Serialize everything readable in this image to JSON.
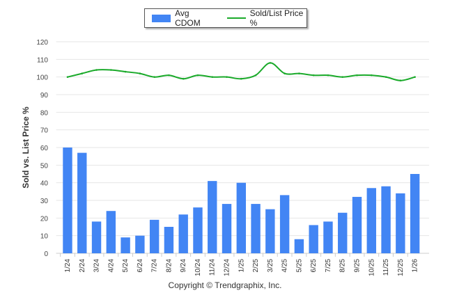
{
  "chart_data": {
    "type": "bar",
    "categories": [
      "1/24",
      "2/24",
      "3/24",
      "4/24",
      "5/24",
      "6/24",
      "7/24",
      "8/24",
      "9/24",
      "10/24",
      "11/24",
      "12/24",
      "1/25",
      "2/25",
      "3/25",
      "4/25",
      "5/25",
      "6/25",
      "7/25",
      "8/25",
      "9/25",
      "10/25",
      "11/25",
      "12/25",
      "1/26"
    ],
    "series": [
      {
        "name": "Avg CDOM",
        "type": "bar",
        "color": "#4285f4",
        "values": [
          60,
          57,
          18,
          24,
          9,
          10,
          19,
          15,
          22,
          26,
          41,
          28,
          40,
          28,
          25,
          33,
          8,
          16,
          18,
          23,
          32,
          37,
          38,
          34,
          45
        ]
      },
      {
        "name": "Sold/List Price %",
        "type": "line",
        "color": "#1aaa2a",
        "values": [
          100,
          102,
          104,
          104,
          103,
          102,
          100,
          101,
          99,
          101,
          100,
          100,
          99,
          101,
          108,
          102,
          102,
          101,
          101,
          100,
          101,
          101,
          100,
          98,
          100
        ]
      }
    ],
    "ylabel": "Sold vs. List Price %",
    "ylim": [
      0,
      120
    ],
    "yticks": [
      0,
      10,
      20,
      30,
      40,
      50,
      60,
      70,
      80,
      90,
      100,
      110,
      120
    ],
    "grid": true,
    "legend": "top-center"
  },
  "footer": "Copyright © Trendgraphix, Inc."
}
